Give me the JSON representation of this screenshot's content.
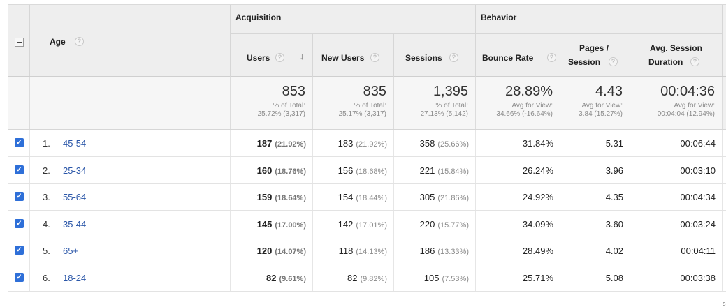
{
  "header": {
    "dimension_label": "Age",
    "groups": {
      "acquisition": "Acquisition",
      "behavior": "Behavior"
    },
    "columns": {
      "users": "Users",
      "new_users": "New Users",
      "sessions": "Sessions",
      "bounce_rate": "Bounce Rate",
      "pages_session_1": "Pages /",
      "pages_session_2": "Session",
      "avg_duration_1": "Avg. Session",
      "avg_duration_2": "Duration"
    },
    "help_glyph": "?",
    "sort_glyph": "↓"
  },
  "totals": {
    "users": {
      "value": "853",
      "line1": "% of Total:",
      "line2": "25.72% (3,317)"
    },
    "new_users": {
      "value": "835",
      "line1": "% of Total:",
      "line2": "25.17% (3,317)"
    },
    "sessions": {
      "value": "1,395",
      "line1": "% of Total:",
      "line2": "27.13% (5,142)"
    },
    "bounce_rate": {
      "value": "28.89%",
      "line1": "Avg for View:",
      "line2": "34.66% (-16.64%)"
    },
    "pages_session": {
      "value": "4.43",
      "line1": "Avg for View:",
      "line2": "3.84 (15.27%)"
    },
    "avg_duration": {
      "value": "00:04:36",
      "line1": "Avg for View:",
      "line2": "00:04:04 (12.94%)"
    }
  },
  "rows": [
    {
      "index": "1.",
      "age": "45-54",
      "users": "187",
      "users_pct": "(21.92%)",
      "new_users": "183",
      "new_users_pct": "(21.92%)",
      "sessions": "358",
      "sessions_pct": "(25.66%)",
      "bounce": "31.84%",
      "pages": "5.31",
      "duration": "00:06:44",
      "checked": true
    },
    {
      "index": "2.",
      "age": "25-34",
      "users": "160",
      "users_pct": "(18.76%)",
      "new_users": "156",
      "new_users_pct": "(18.68%)",
      "sessions": "221",
      "sessions_pct": "(15.84%)",
      "bounce": "26.24%",
      "pages": "3.96",
      "duration": "00:03:10",
      "checked": true
    },
    {
      "index": "3.",
      "age": "55-64",
      "users": "159",
      "users_pct": "(18.64%)",
      "new_users": "154",
      "new_users_pct": "(18.44%)",
      "sessions": "305",
      "sessions_pct": "(21.86%)",
      "bounce": "24.92%",
      "pages": "4.35",
      "duration": "00:04:34",
      "checked": true
    },
    {
      "index": "4.",
      "age": "35-44",
      "users": "145",
      "users_pct": "(17.00%)",
      "new_users": "142",
      "new_users_pct": "(17.01%)",
      "sessions": "220",
      "sessions_pct": "(15.77%)",
      "bounce": "34.09%",
      "pages": "3.60",
      "duration": "00:03:24",
      "checked": true
    },
    {
      "index": "5.",
      "age": "65+",
      "users": "120",
      "users_pct": "(14.07%)",
      "new_users": "118",
      "new_users_pct": "(14.13%)",
      "sessions": "186",
      "sessions_pct": "(13.33%)",
      "bounce": "28.49%",
      "pages": "4.02",
      "duration": "00:04:11",
      "checked": true
    },
    {
      "index": "6.",
      "age": "18-24",
      "users": "82",
      "users_pct": "(9.61%)",
      "new_users": "82",
      "new_users_pct": "(9.82%)",
      "sessions": "105",
      "sessions_pct": "(7.53%)",
      "bounce": "25.71%",
      "pages": "5.08",
      "duration": "00:03:38",
      "checked": true
    }
  ],
  "checkbox_glyph": "✓",
  "footer_fragment": "s",
  "colors": {
    "link": "#2a56a8",
    "checkbox": "#2e6fd8",
    "header_bg": "#eeeeee"
  }
}
